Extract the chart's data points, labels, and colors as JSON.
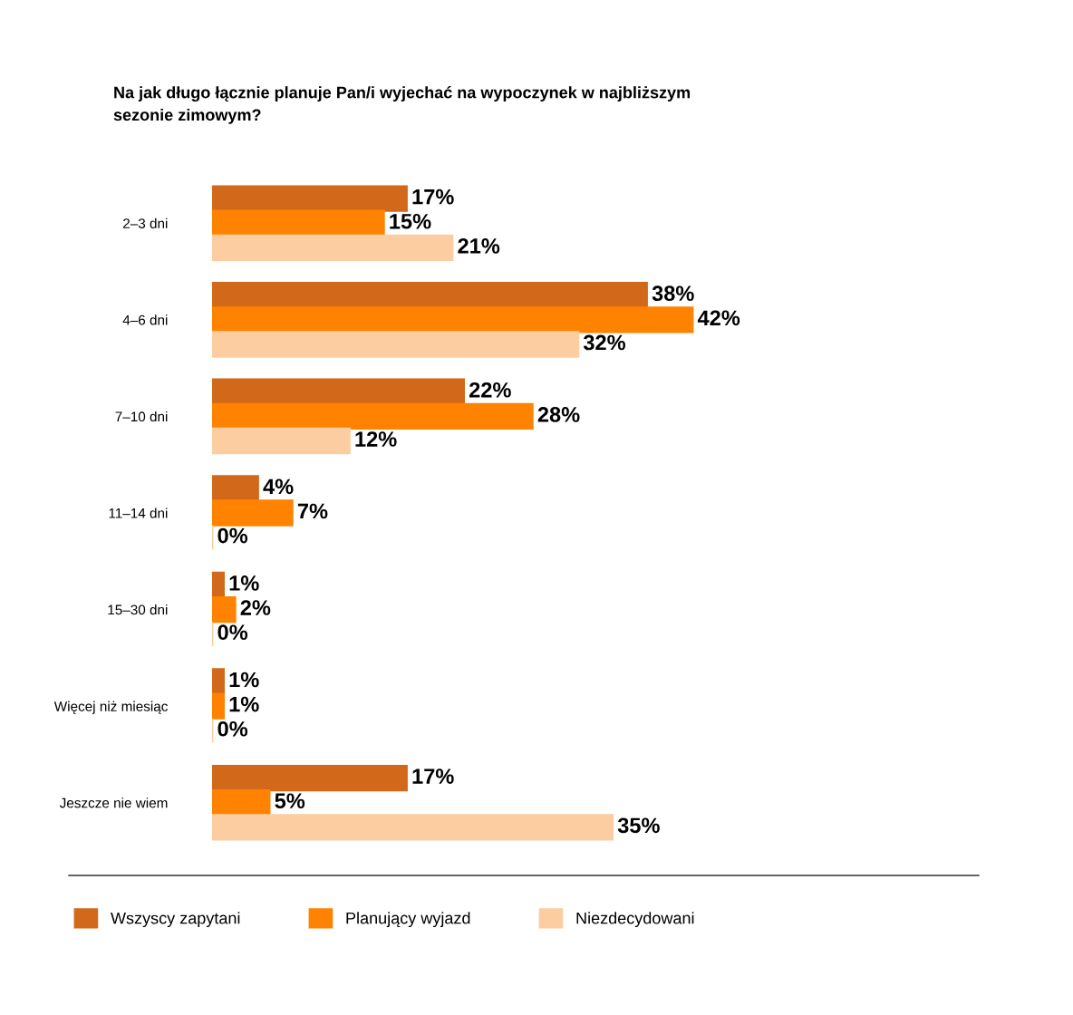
{
  "chart_data": {
    "type": "bar",
    "orientation": "horizontal",
    "title": "Na jak długo łącznie planuje Pan/i wyjechać na wypoczynek w najbliższym sezonie zimowym?",
    "categories": [
      "2–3 dni",
      "4–6 dni",
      "7–10 dni",
      "11–14 dni",
      "15–30 dni",
      "Więcej niż miesiąc",
      "Jeszcze nie wiem"
    ],
    "series": [
      {
        "name": "Wszyscy zapytani",
        "color": "#d2691a",
        "values": [
          17,
          38,
          22,
          4,
          1,
          1,
          17
        ],
        "value_labels": [
          "17%",
          "38%",
          "22%",
          "4%",
          "1%",
          "1%",
          "17%"
        ]
      },
      {
        "name": "Planujący wyjazd",
        "color": "#ff8200",
        "values": [
          15,
          42,
          28,
          7,
          2,
          1,
          5
        ],
        "value_labels": [
          "15%",
          "42%",
          "28%",
          "7%",
          "2%",
          "1%",
          "5%"
        ]
      },
      {
        "name": "Niezdecydowani",
        "color": "#fbcda0",
        "values": [
          21,
          32,
          12,
          0,
          0,
          0,
          35
        ],
        "value_labels": [
          "21%",
          "32%",
          "12%",
          "0%",
          "0%",
          "0%",
          "35%"
        ]
      }
    ],
    "legend": "bottom",
    "grid": false
  }
}
